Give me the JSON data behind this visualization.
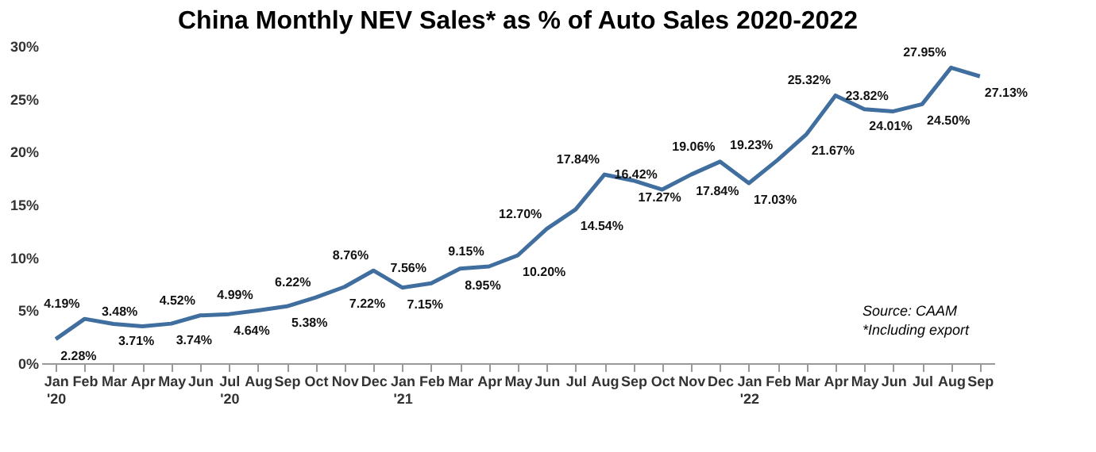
{
  "chart_data": {
    "type": "line",
    "title": "China Monthly NEV Sales* as % of Auto Sales 2020-2022",
    "categories": [
      "Jan '20",
      "Feb",
      "Mar",
      "Apr",
      "May",
      "Jun",
      "Jul '20",
      "Aug",
      "Sep",
      "Oct",
      "Nov",
      "Dec",
      "Jan '21",
      "Feb",
      "Mar",
      "Apr",
      "May",
      "Jun",
      "Jul",
      "Aug",
      "Sep",
      "Oct",
      "Nov",
      "Dec",
      "Jan '22",
      "Feb",
      "Mar",
      "Apr",
      "May",
      "Jun",
      "Jul",
      "Aug",
      "Sep"
    ],
    "series": [
      {
        "color": "#3f6e9f",
        "values": [
          2.28,
          4.19,
          3.71,
          3.48,
          3.74,
          4.52,
          4.64,
          4.99,
          5.38,
          6.22,
          7.22,
          8.76,
          7.15,
          7.56,
          8.95,
          9.15,
          10.2,
          12.7,
          14.54,
          17.84,
          17.27,
          16.42,
          17.84,
          19.06,
          17.03,
          19.23,
          21.67,
          25.32,
          24.01,
          23.82,
          24.5,
          27.95,
          27.13
        ],
        "value_labels": [
          "2.28%",
          "4.19%",
          "3.71%",
          "3.48%",
          "3.74%",
          "4.52%",
          "4.64%",
          "4.99%",
          "5.38%",
          "6.22%",
          "7.22%",
          "8.76%",
          "7.15%",
          "7.56%",
          "8.95%",
          "9.15%",
          "10.20%",
          "12.70%",
          "14.54%",
          "17.84%",
          "17.27%",
          "16.42%",
          "17.84%",
          "19.06%",
          "17.03%",
          "19.23%",
          "21.67%",
          "25.32%",
          "24.01%",
          "23.82%",
          "24.50%",
          "27.95%",
          "27.13%"
        ]
      }
    ],
    "ylim": [
      0,
      30
    ],
    "yticks": [
      {
        "value": 0,
        "label": "0%"
      },
      {
        "value": 5,
        "label": "5%"
      },
      {
        "value": 10,
        "label": "10%"
      },
      {
        "value": 15,
        "label": "15%"
      },
      {
        "value": 20,
        "label": "20%"
      },
      {
        "value": 25,
        "label": "25%"
      },
      {
        "value": 30,
        "label": "30%"
      }
    ],
    "grid": false,
    "legend": false,
    "marker": "none",
    "line_style": "solid",
    "annotations": [
      "Source: CAAM",
      "*Including export"
    ]
  }
}
